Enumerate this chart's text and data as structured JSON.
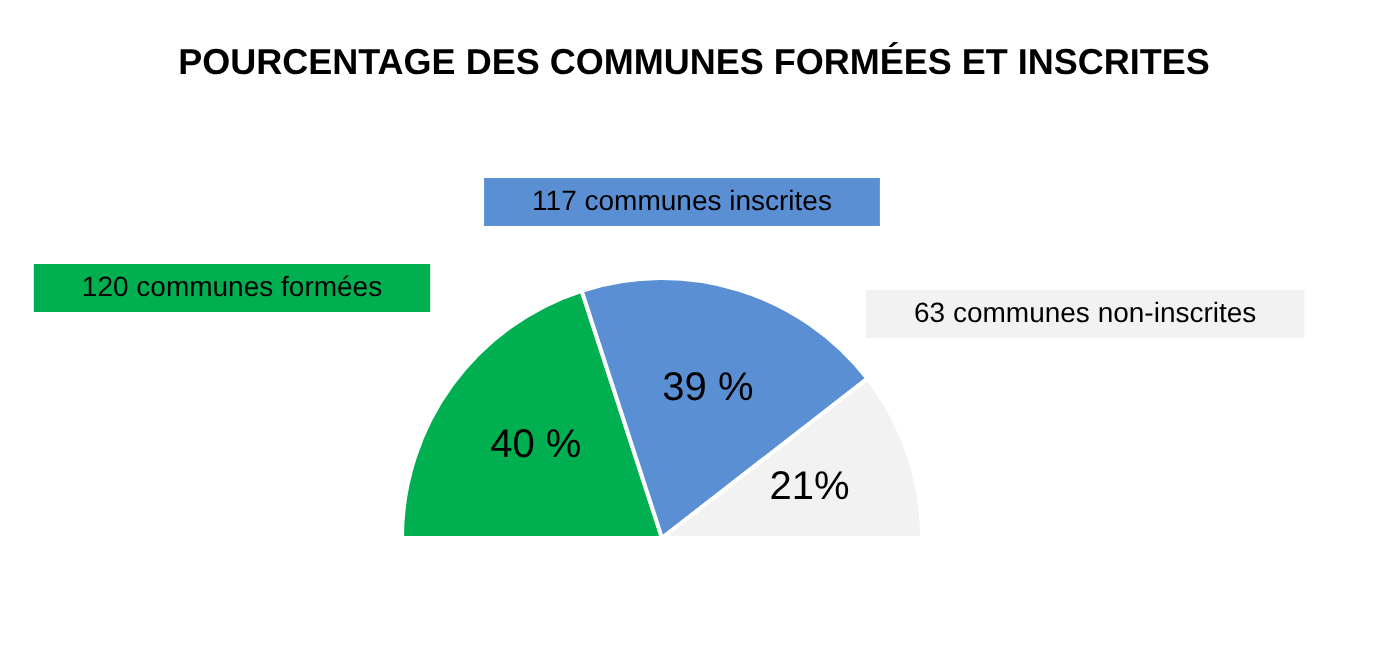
{
  "chart_data": {
    "type": "pie",
    "title": "POURCENTAGE DES COMMUNES FORMÉES ET INSCRITES",
    "categories": [
      "120 communes formées",
      "117 communes inscrites",
      "63 communes non-inscrites"
    ],
    "values": [
      40,
      39,
      21
    ],
    "colors": [
      "#00b050",
      "#5b8fd4",
      "#f2f2f2"
    ],
    "value_labels": [
      "40 %",
      "39 %",
      "21%"
    ]
  }
}
